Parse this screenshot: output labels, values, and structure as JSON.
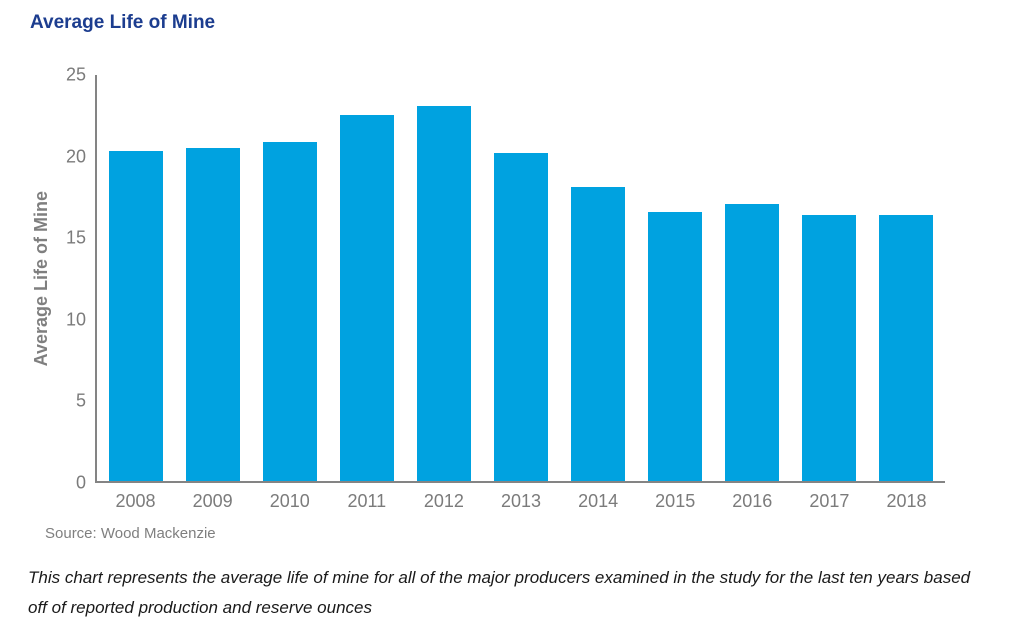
{
  "header": {
    "title": "Average Life of Mine"
  },
  "chart_data": {
    "type": "bar",
    "title": "Average Life of Mine",
    "categories": [
      "2008",
      "2009",
      "2010",
      "2011",
      "2012",
      "2013",
      "2014",
      "2015",
      "2016",
      "2017",
      "2018"
    ],
    "values": [
      20.2,
      20.4,
      20.8,
      22.4,
      23.0,
      20.1,
      18.0,
      16.5,
      17.0,
      16.3,
      16.3
    ],
    "xlabel": "",
    "ylabel": "Average Life of Mine",
    "ylim": [
      0,
      25
    ],
    "yticks": [
      0,
      5,
      10,
      15,
      20,
      25
    ],
    "grid": false,
    "legend": null,
    "bar_color": "#00A2E0",
    "axis_color": "#848484",
    "label_color": "#7b7b7b",
    "title_color": "#1c3d8f"
  },
  "source": {
    "label": "Source: Wood Mackenzie"
  },
  "caption": {
    "text": "This chart represents the average life of mine for all of the major producers examined in the study for the last ten years based off of reported production and reserve ounces"
  }
}
